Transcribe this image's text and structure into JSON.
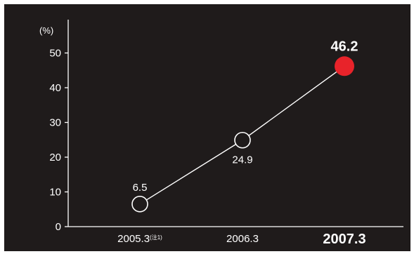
{
  "chart_data": {
    "type": "line",
    "title": "",
    "xlabel": "",
    "ylabel": "(%)",
    "categories": [
      "2005.3",
      "2006.3",
      "2007.3"
    ],
    "category_notes": [
      "(注1)",
      "",
      ""
    ],
    "values": [
      6.5,
      24.9,
      46.2
    ],
    "data_labels": [
      "6.5",
      "24.9",
      "46.2"
    ],
    "highlight_index": 2,
    "ylim": [
      0,
      55
    ],
    "yticks": [
      0,
      10,
      20,
      30,
      40,
      50
    ],
    "grid": false,
    "legend": "none"
  },
  "colors": {
    "background": "#1f1b1b",
    "foreground": "#ffffff",
    "highlight": "#e8232a",
    "marker_fill": "#1f1b1b"
  }
}
